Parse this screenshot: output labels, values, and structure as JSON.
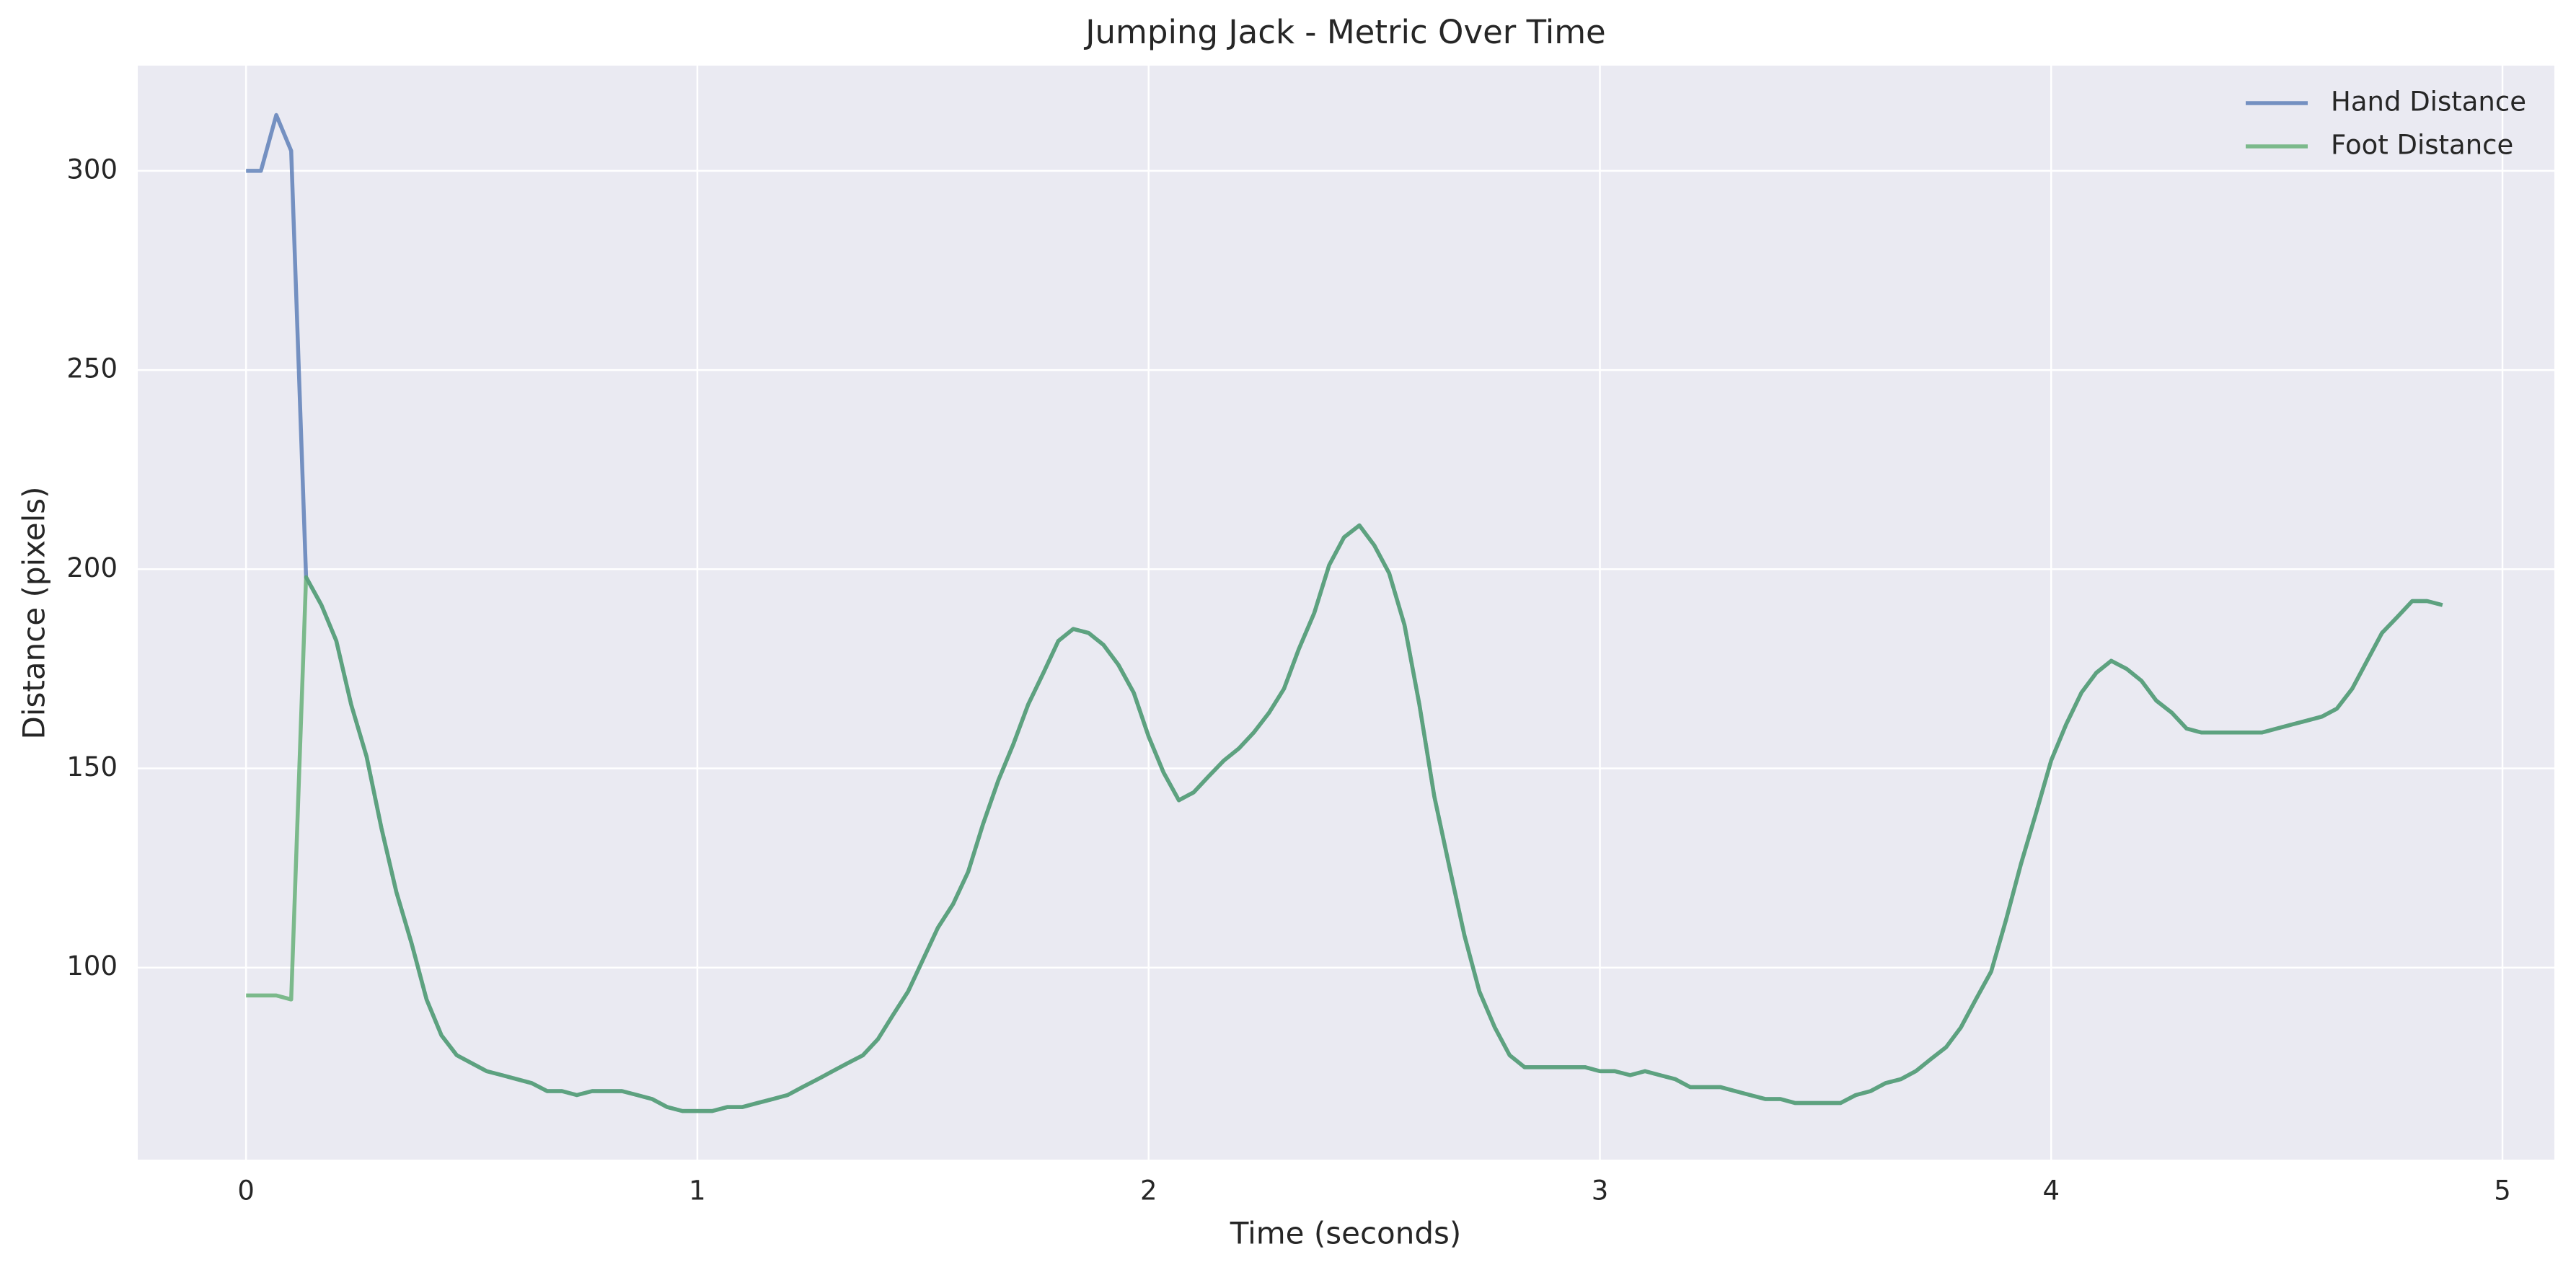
{
  "chart_data": {
    "type": "line",
    "title": "Jumping Jack - Metric Over Time",
    "x_label": "Time (seconds)",
    "y_label": "Distance (pixels)",
    "x": [
      0,
      0.033,
      0.067,
      0.1,
      0.133,
      0.167,
      0.2,
      0.233,
      0.267,
      0.3,
      0.333,
      0.367,
      0.4,
      0.433,
      0.467,
      0.5,
      0.533,
      0.567,
      0.6,
      0.633,
      0.667,
      0.7,
      0.733,
      0.767,
      0.8,
      0.833,
      0.867,
      0.9,
      0.933,
      0.967,
      1,
      1.033,
      1.067,
      1.1,
      1.133,
      1.167,
      1.2,
      1.233,
      1.267,
      1.3,
      1.333,
      1.367,
      1.4,
      1.433,
      1.467,
      1.5,
      1.533,
      1.567,
      1.6,
      1.633,
      1.667,
      1.7,
      1.733,
      1.767,
      1.8,
      1.833,
      1.867,
      1.9,
      1.933,
      1.967,
      2,
      2.033,
      2.067,
      2.1,
      2.133,
      2.167,
      2.2,
      2.233,
      2.267,
      2.3,
      2.333,
      2.367,
      2.4,
      2.433,
      2.467,
      2.5,
      2.533,
      2.567,
      2.6,
      2.633,
      2.667,
      2.7,
      2.733,
      2.767,
      2.8,
      2.833,
      2.867,
      2.9,
      2.933,
      2.967,
      3,
      3.033,
      3.067,
      3.1,
      3.133,
      3.167,
      3.2,
      3.233,
      3.267,
      3.3,
      3.333,
      3.367,
      3.4,
      3.433,
      3.467,
      3.5,
      3.533,
      3.567,
      3.6,
      3.633,
      3.667,
      3.7,
      3.733,
      3.767,
      3.8,
      3.833,
      3.867,
      3.9,
      3.933,
      3.967,
      4,
      4.033,
      4.067,
      4.1,
      4.133,
      4.167,
      4.2,
      4.233,
      4.267,
      4.3,
      4.333,
      4.367,
      4.4,
      4.433,
      4.467,
      4.5,
      4.533,
      4.567,
      4.6,
      4.633,
      4.667,
      4.7,
      4.733,
      4.767,
      4.8,
      4.833,
      4.867
    ],
    "series": [
      {
        "name": "Hand Distance",
        "color": "#4c72b0",
        "values": [
          300,
          300,
          314,
          305,
          198,
          191,
          182,
          166,
          153,
          135,
          119,
          106,
          92,
          83,
          78,
          76,
          74,
          73,
          72,
          71,
          69,
          69,
          68,
          69,
          69,
          69,
          68,
          67,
          65,
          64,
          64,
          64,
          65,
          65,
          66,
          67,
          68,
          70,
          72,
          74,
          76,
          78,
          82,
          88,
          94,
          102,
          110,
          116,
          124,
          136,
          147,
          156,
          166,
          174,
          182,
          185,
          184,
          181,
          176,
          169,
          158,
          149,
          142,
          144,
          148,
          152,
          155,
          159,
          164,
          170,
          180,
          189,
          201,
          208,
          211,
          206,
          199,
          186,
          166,
          143,
          125,
          108,
          94,
          85,
          78,
          75,
          75,
          75,
          75,
          75,
          74,
          74,
          73,
          74,
          73,
          72,
          70,
          70,
          70,
          69,
          68,
          67,
          67,
          66,
          66,
          66,
          66,
          68,
          69,
          71,
          72,
          74,
          77,
          80,
          85,
          92,
          99,
          112,
          126,
          139,
          152,
          161,
          169,
          174,
          177,
          175,
          172,
          167,
          164,
          160,
          159,
          159,
          159,
          159,
          159,
          160,
          161,
          162,
          163,
          165,
          170,
          177,
          184,
          188,
          192,
          192,
          191
        ]
      },
      {
        "name": "Foot Distance",
        "color": "#55a868",
        "values": [
          93,
          93,
          93,
          92,
          198,
          191,
          182,
          166,
          153,
          135,
          119,
          106,
          92,
          83,
          78,
          76,
          74,
          73,
          72,
          71,
          69,
          69,
          68,
          69,
          69,
          69,
          68,
          67,
          65,
          64,
          64,
          64,
          65,
          65,
          66,
          67,
          68,
          70,
          72,
          74,
          76,
          78,
          82,
          88,
          94,
          102,
          110,
          116,
          124,
          136,
          147,
          156,
          166,
          174,
          182,
          185,
          184,
          181,
          176,
          169,
          158,
          149,
          142,
          144,
          148,
          152,
          155,
          159,
          164,
          170,
          180,
          189,
          201,
          208,
          211,
          206,
          199,
          186,
          166,
          143,
          125,
          108,
          94,
          85,
          78,
          75,
          75,
          75,
          75,
          75,
          74,
          74,
          73,
          74,
          73,
          72,
          70,
          70,
          70,
          69,
          68,
          67,
          67,
          66,
          66,
          66,
          66,
          68,
          69,
          71,
          72,
          74,
          77,
          80,
          85,
          92,
          99,
          112,
          126,
          139,
          152,
          161,
          169,
          174,
          177,
          175,
          172,
          167,
          164,
          160,
          159,
          159,
          159,
          159,
          159,
          160,
          161,
          162,
          163,
          165,
          170,
          177,
          184,
          188,
          192,
          192,
          191
        ]
      }
    ],
    "xlim": [
      -0.24,
      5.115
    ],
    "ylim": [
      51.8,
      326.4
    ],
    "xticks": [
      0,
      1,
      2,
      3,
      4,
      5
    ],
    "yticks": [
      100,
      150,
      200,
      250,
      300
    ],
    "grid": true,
    "legend": "upper right"
  }
}
